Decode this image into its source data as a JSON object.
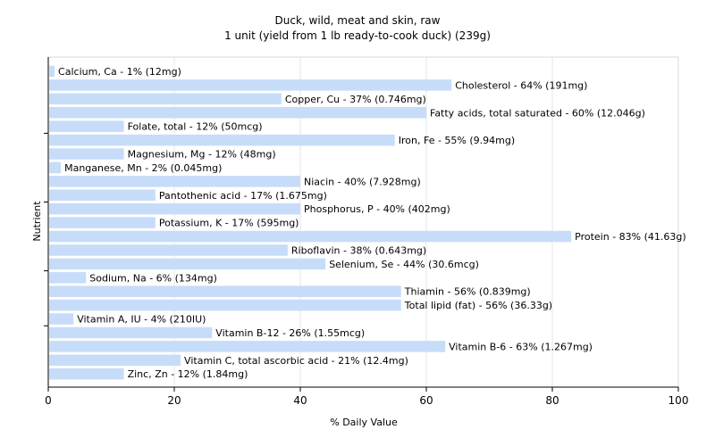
{
  "chart_data": {
    "type": "bar",
    "orientation": "horizontal",
    "title": "Duck, wild, meat and skin, raw",
    "subtitle": "1 unit (yield from 1 lb ready-to-cook duck) (239g)",
    "xlabel": "% Daily Value",
    "ylabel": "Nutrient",
    "xlim": [
      0,
      100
    ],
    "xticks": [
      "0",
      "20",
      "40",
      "60",
      "80",
      "100"
    ],
    "grid": true,
    "legend": "none",
    "colors": {
      "bar": "#c6dcf9",
      "grid": "#e6e6e6",
      "plot_border": "#d9d9d9",
      "axis": "#000000"
    },
    "bars": [
      {
        "name": "Calcium, Ca",
        "value": 1,
        "label": "Calcium, Ca - 1% (12mg)"
      },
      {
        "name": "Cholesterol",
        "value": 64,
        "label": "Cholesterol - 64% (191mg)"
      },
      {
        "name": "Copper, Cu",
        "value": 37,
        "label": "Copper, Cu - 37% (0.746mg)"
      },
      {
        "name": "Fatty acids, total saturated",
        "value": 60,
        "label": "Fatty acids, total saturated - 60% (12.046g)"
      },
      {
        "name": "Folate, total",
        "value": 12,
        "label": "Folate, total - 12% (50mcg)"
      },
      {
        "name": "Iron, Fe",
        "value": 55,
        "label": "Iron, Fe - 55% (9.94mg)"
      },
      {
        "name": "Magnesium, Mg",
        "value": 12,
        "label": "Magnesium, Mg - 12% (48mg)"
      },
      {
        "name": "Manganese, Mn",
        "value": 2,
        "label": "Manganese, Mn - 2% (0.045mg)"
      },
      {
        "name": "Niacin",
        "value": 40,
        "label": "Niacin - 40% (7.928mg)"
      },
      {
        "name": "Pantothenic acid",
        "value": 17,
        "label": "Pantothenic acid - 17% (1.675mg)"
      },
      {
        "name": "Phosphorus, P",
        "value": 40,
        "label": "Phosphorus, P - 40% (402mg)"
      },
      {
        "name": "Potassium, K",
        "value": 17,
        "label": "Potassium, K - 17% (595mg)"
      },
      {
        "name": "Protein",
        "value": 83,
        "label": "Protein - 83% (41.63g)"
      },
      {
        "name": "Riboflavin",
        "value": 38,
        "label": "Riboflavin - 38% (0.643mg)"
      },
      {
        "name": "Selenium, Se",
        "value": 44,
        "label": "Selenium, Se - 44% (30.6mcg)"
      },
      {
        "name": "Sodium, Na",
        "value": 6,
        "label": "Sodium, Na - 6% (134mg)"
      },
      {
        "name": "Thiamin",
        "value": 56,
        "label": "Thiamin - 56% (0.839mg)"
      },
      {
        "name": "Total lipid (fat)",
        "value": 56,
        "label": "Total lipid (fat) - 56% (36.33g)"
      },
      {
        "name": "Vitamin A, IU",
        "value": 4,
        "label": "Vitamin A, IU - 4% (210IU)"
      },
      {
        "name": "Vitamin B-12",
        "value": 26,
        "label": "Vitamin B-12 - 26% (1.55mcg)"
      },
      {
        "name": "Vitamin B-6",
        "value": 63,
        "label": "Vitamin B-6 - 63% (1.267mg)"
      },
      {
        "name": "Vitamin C, total ascorbic acid",
        "value": 21,
        "label": "Vitamin C, total ascorbic acid - 21% (12.4mg)"
      },
      {
        "name": "Zinc, Zn",
        "value": 12,
        "label": "Zinc, Zn - 12% (1.84mg)"
      }
    ]
  }
}
